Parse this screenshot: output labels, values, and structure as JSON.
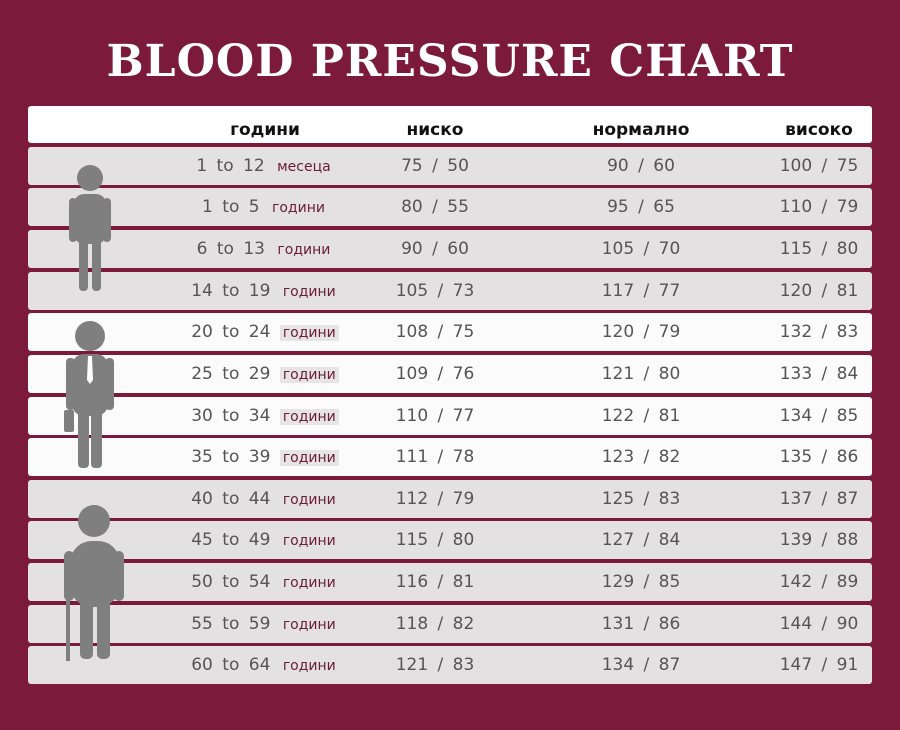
{
  "title": "BLOOD PRESSURE CHART",
  "headers": [
    "години",
    "ниско",
    "нормално",
    "високо"
  ],
  "rows": [
    {
      "from": "1",
      "to": "12",
      "unit": "месеца",
      "low": "75 / 50",
      "normal": "90 / 60",
      "high": "100 / 75"
    },
    {
      "from": "1",
      "to": "5",
      "unit": "години",
      "low": "80 / 55",
      "normal": "95 / 65",
      "high": "110 / 79"
    },
    {
      "from": "6",
      "to": "13",
      "unit": "години",
      "low": "90 / 60",
      "normal": "105 / 70",
      "high": "115 / 80"
    },
    {
      "from": "14",
      "to": "19",
      "unit": "години",
      "low": "105 / 73",
      "normal": "117 / 77",
      "high": "120 / 81"
    },
    {
      "from": "20",
      "to": "24",
      "unit": "години",
      "low": "108 / 75",
      "normal": "120 / 79",
      "high": "132 / 83"
    },
    {
      "from": "25",
      "to": "29",
      "unit": "години",
      "low": "109 / 76",
      "normal": "121 / 80",
      "high": "133 / 84"
    },
    {
      "from": "30",
      "to": "34",
      "unit": "години",
      "low": "110 / 77",
      "normal": "122 / 81",
      "high": "134 / 85"
    },
    {
      "from": "35",
      "to": "39",
      "unit": "години",
      "low": "111 / 78",
      "normal": "123 / 82",
      "high": "135 / 86"
    },
    {
      "from": "40",
      "to": "44",
      "unit": "години",
      "low": "112 / 79",
      "normal": "125 / 83",
      "high": "137 / 87"
    },
    {
      "from": "45",
      "to": "49",
      "unit": "години",
      "low": "115 / 80",
      "normal": "127 / 84",
      "high": "139 / 88"
    },
    {
      "from": "50",
      "to": "54",
      "unit": "години",
      "low": "116 / 81",
      "normal": "129 / 85",
      "high": "142 / 89"
    },
    {
      "from": "55",
      "to": "59",
      "unit": "години",
      "low": "118 / 82",
      "normal": "131 / 86",
      "high": "144 / 90"
    },
    {
      "from": "60",
      "to": "64",
      "unit": "години",
      "low": "121 / 83",
      "normal": "134 / 87",
      "high": "147 / 91"
    }
  ],
  "connector": "to",
  "colors": {
    "background": "#7b1a3b",
    "row_gray": "#e3e1e2",
    "row_white": "#fbfbfb",
    "figure": "#7f7f7f"
  },
  "icons": [
    "child-figure-icon",
    "adult-businessman-figure-icon",
    "elderly-cane-figure-icon"
  ]
}
